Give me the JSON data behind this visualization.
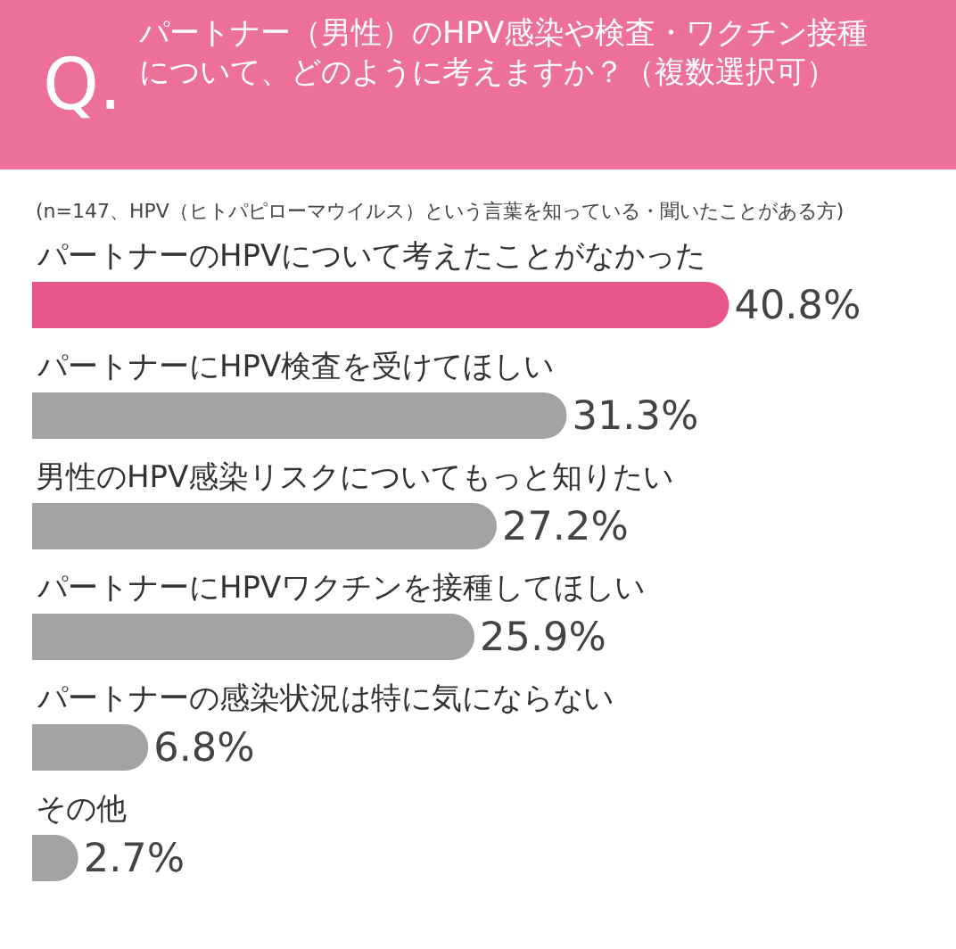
{
  "chart_data": {
    "type": "bar",
    "orientation": "horizontal",
    "title": "パートナー（男性）のHPV感染や検査・ワクチン接種について、どのように考えますか？（複数選択可）",
    "subtitle": "(n=147、HPV（ヒトパピローマウイルス）という言葉を知っている・聞いたことがある方)",
    "annotations": [
      "Q."
    ],
    "categories": [
      "パートナーのHPVについて考えたことがなかった",
      "パートナーにHPV検査を受けてほしい",
      "男性のHPV感染リスクについてもっと知りたい",
      "パートナーにHPVワクチンを接種してほしい",
      "パートナーの感染状況は特に気にならない",
      "その他"
    ],
    "values": [
      40.8,
      31.3,
      27.2,
      25.9,
      6.8,
      2.7
    ],
    "colors": [
      "#e8558a",
      "#a3a3a6",
      "#a3a3a6",
      "#a3a3a6",
      "#a3a3a6",
      "#a3a3a6"
    ],
    "value_labels": [
      "40.8%",
      "31.3%",
      "27.2%",
      "25.9%",
      "6.8%",
      "2.7%"
    ]
  }
}
